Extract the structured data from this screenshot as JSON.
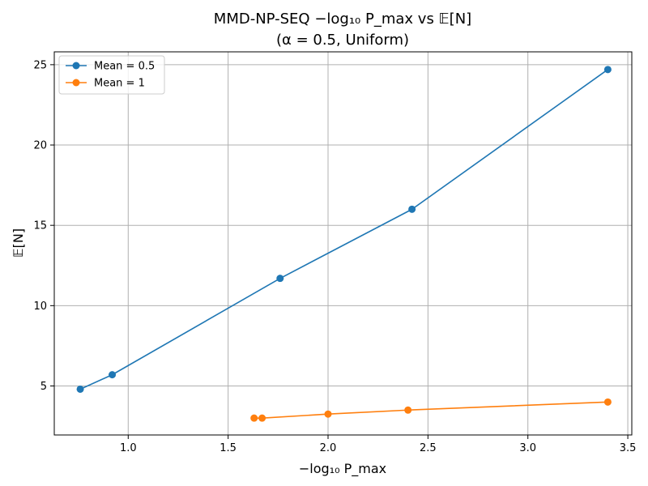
{
  "chart_data": {
    "type": "line",
    "title_line1": "MMD-NP-SEQ −log₁₀ P_max vs 𝔼[N]",
    "title_line2": "(α = 0.5, Uniform)",
    "xlabel": "−log₁₀ P_max",
    "ylabel": "𝔼[N]",
    "xlim": [
      0.63,
      3.52
    ],
    "ylim": [
      1.95,
      25.8
    ],
    "xticks": [
      1.0,
      1.5,
      2.0,
      2.5,
      3.0,
      3.5
    ],
    "xtick_labels": [
      "1.0",
      "1.5",
      "2.0",
      "2.5",
      "3.0",
      "3.5"
    ],
    "yticks": [
      5,
      10,
      15,
      20,
      25
    ],
    "ytick_labels": [
      "5",
      "10",
      "15",
      "20",
      "25"
    ],
    "grid": true,
    "legend_position": "top-left",
    "series": [
      {
        "name": "Mean = 0.5",
        "color": "#1f77b4",
        "marker": "circle",
        "x": [
          0.76,
          0.92,
          1.76,
          2.42,
          3.4
        ],
        "y": [
          4.8,
          5.7,
          11.7,
          16.0,
          24.7
        ]
      },
      {
        "name": "Mean = 1",
        "color": "#ff7f0e",
        "marker": "circle",
        "x": [
          1.63,
          1.67,
          2.0,
          2.4,
          3.4
        ],
        "y": [
          3.0,
          3.0,
          3.25,
          3.5,
          4.0
        ]
      }
    ]
  }
}
